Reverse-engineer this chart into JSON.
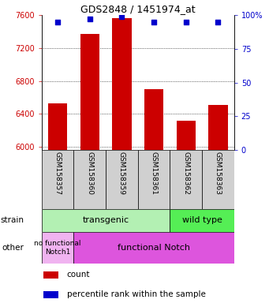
{
  "title": "GDS2848 / 1451974_at",
  "samples": [
    "GSM158357",
    "GSM158360",
    "GSM158359",
    "GSM158361",
    "GSM158362",
    "GSM158363"
  ],
  "bar_values": [
    6530,
    7370,
    7560,
    6700,
    6320,
    6510
  ],
  "percentile_values": [
    95,
    97,
    99,
    95,
    95,
    95
  ],
  "ymin": 5960,
  "ymax": 7600,
  "yticks": [
    6000,
    6400,
    6800,
    7200,
    7600
  ],
  "y2ticks": [
    0,
    25,
    50,
    75,
    100
  ],
  "y2min": 0,
  "y2max": 100,
  "bar_color": "#cc0000",
  "dot_color": "#0000cc",
  "n_transgenic": 4,
  "n_wildtype": 2,
  "n_nofunc": 1,
  "n_func": 5,
  "strain_transgenic_label": "transgenic",
  "strain_wildtype_label": "wild type",
  "notch_nofunc_label": "no functional\nNotch1",
  "notch_func_label": "functional Notch",
  "strain_row_label": "strain",
  "other_row_label": "other",
  "legend_count": "count",
  "legend_percentile": "percentile rank within the sample",
  "transgenic_color": "#b3f0b3",
  "wildtype_color": "#55ee55",
  "nofunc_color": "#f0b3f0",
  "func_color": "#dd55dd",
  "tick_label_color_left": "#cc0000",
  "tick_label_color_right": "#0000cc",
  "bar_width": 0.6,
  "dot_size": 25,
  "sample_box_color": "#d0d0d0",
  "left_label_color": "#333333"
}
